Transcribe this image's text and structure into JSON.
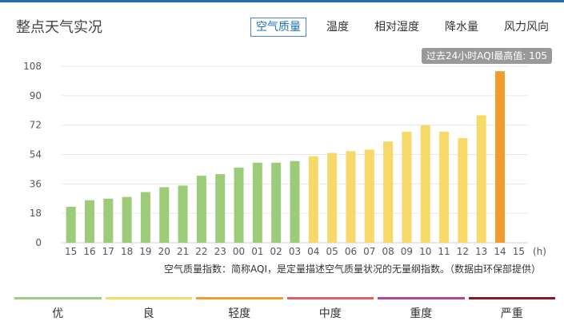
{
  "page_title": "整点天气实况",
  "tabs": [
    {
      "label": "空气质量",
      "active": true
    },
    {
      "label": "温度",
      "active": false
    },
    {
      "label": "相对湿度",
      "active": false
    },
    {
      "label": "降水量",
      "active": false
    },
    {
      "label": "风力风向",
      "active": false
    }
  ],
  "max_badge": "过去24小时AQI最高值: 105",
  "note": "空气质量指数：简称AQI，是定量描述空气质量状况的无量纲指数。（数据由环保部提供）",
  "legend": [
    {
      "label": "优",
      "color": "#9ccc7a"
    },
    {
      "label": "良",
      "color": "#f7d96a"
    },
    {
      "label": "轻度",
      "color": "#f39c2e"
    },
    {
      "label": "中度",
      "color": "#e06060"
    },
    {
      "label": "重度",
      "color": "#b0459a"
    },
    {
      "label": "严重",
      "color": "#8a1a2a"
    }
  ],
  "colors": {
    "topline": "#1f6fb2",
    "grid": "#e6e6e6"
  },
  "chart_data": {
    "type": "bar",
    "xlabel": "(h)",
    "ylabel": "",
    "categories": [
      "15",
      "16",
      "17",
      "18",
      "19",
      "20",
      "21",
      "22",
      "23",
      "00",
      "01",
      "02",
      "03",
      "04",
      "05",
      "06",
      "07",
      "08",
      "09",
      "10",
      "11",
      "12",
      "13",
      "14",
      "15"
    ],
    "values": [
      22,
      26,
      27,
      28,
      31,
      34,
      35,
      41,
      42,
      46,
      49,
      49,
      50,
      53,
      55,
      56,
      57,
      62,
      68,
      72,
      68,
      64,
      78,
      105,
      null
    ],
    "yticks": [
      0,
      18,
      36,
      54,
      72,
      90,
      108
    ],
    "ylim": [
      0,
      108
    ],
    "grid": true,
    "level_colors": {
      "good": "#9ccc7a",
      "moderate": "#f7d96a",
      "light": "#f39c2e"
    },
    "level_bounds": [
      50,
      100
    ]
  }
}
